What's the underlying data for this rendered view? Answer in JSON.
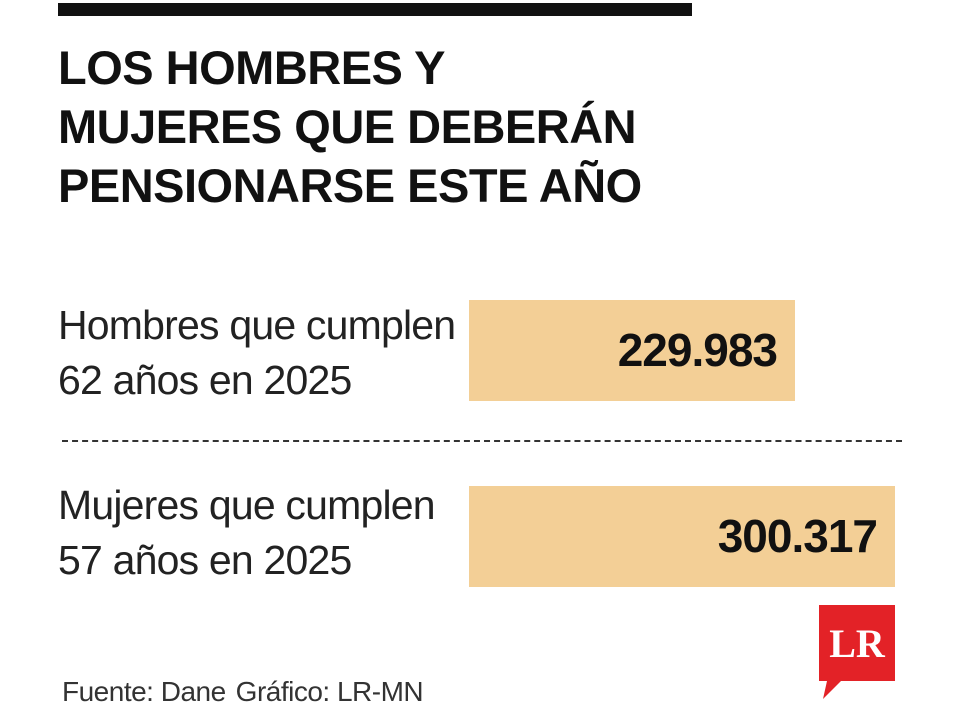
{
  "title_lines": [
    "LOS HOMBRES Y",
    "MUJERES QUE DEBERÁN",
    "PENSIONARSE ESTE AÑO"
  ],
  "chart_data": {
    "type": "bar",
    "orientation": "horizontal",
    "title": "LOS HOMBRES Y MUJERES QUE DEBERÁN PENSIONARSE ESTE AÑO",
    "categories": [
      "Hombres que cumplen 62 años en 2025",
      "Mujeres que cumplen 57 años en 2025"
    ],
    "category_lines": [
      [
        "Hombres que cumplen",
        "62 años en 2025"
      ],
      [
        "Mujeres que cumplen",
        "57 años en 2025"
      ]
    ],
    "values": [
      229983,
      300317
    ],
    "value_labels": [
      "229.983",
      "300.317"
    ],
    "xlim": [
      0,
      300317
    ],
    "grid": false,
    "bar_color": "#f3cf96"
  },
  "source": "Fuente: Dane",
  "credit": "Gráfico: LR-MN",
  "logo": {
    "text": "LR",
    "color": "#e32227",
    "icon": "speech-bubble-logo"
  }
}
